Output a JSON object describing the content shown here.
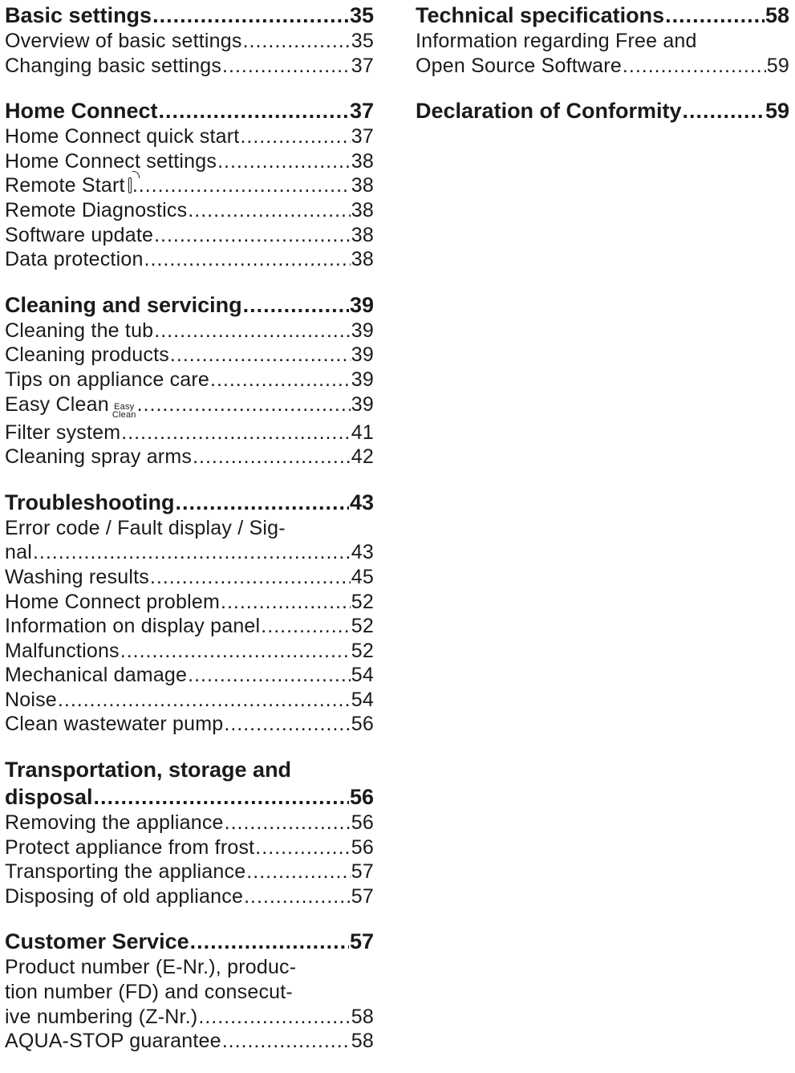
{
  "left": [
    {
      "heading": {
        "label": "Basic settings",
        "page": "35"
      },
      "entries": [
        {
          "label": "Overview of basic settings",
          "page": "35"
        },
        {
          "label": "Changing basic settings",
          "page": "37"
        }
      ]
    },
    {
      "heading": {
        "label": "Home Connect ",
        "page": "37"
      },
      "entries": [
        {
          "label": "Home Connect quick start ",
          "page": "37"
        },
        {
          "label": "Home Connect settings",
          "page": "38"
        },
        {
          "label": "Remote Start ",
          "page": "38",
          "icon": "remote-start-icon"
        },
        {
          "label": "Remote Diagnostics ",
          "page": "38"
        },
        {
          "label": "Software update ",
          "page": "38"
        },
        {
          "label": "Data protection",
          "page": "38"
        }
      ]
    },
    {
      "heading": {
        "label": "Cleaning and servicing",
        "page": "39"
      },
      "entries": [
        {
          "label": "Cleaning the tub",
          "page": "39"
        },
        {
          "label": "Cleaning products",
          "page": "39"
        },
        {
          "label": "Tips on appliance care",
          "page": "39"
        },
        {
          "label": "Easy Clean ",
          "page": "39",
          "icon": "easy-clean-icon",
          "icon_top": "Easy",
          "icon_bottom": "Clean"
        },
        {
          "label": "Filter system ",
          "page": "41"
        },
        {
          "label": "Cleaning spray arms ",
          "page": "42"
        }
      ]
    },
    {
      "heading": {
        "label": "Troubleshooting",
        "page": "43"
      },
      "entries": [
        {
          "label": "Error code / Fault display / Sig-",
          "cont": "nal",
          "page": "43"
        },
        {
          "label": "Washing results",
          "page": "45"
        },
        {
          "label": "Home Connect problem",
          "page": "52"
        },
        {
          "label": "Information on display panel",
          "page": "52"
        },
        {
          "label": "Malfunctions ",
          "page": "52"
        },
        {
          "label": "Mechanical damage",
          "page": "54"
        },
        {
          "label": "Noise ",
          "page": "54"
        },
        {
          "label": "Clean wastewater pump",
          "page": "56"
        }
      ]
    },
    {
      "heading": {
        "label": "Transportation, storage and",
        "cont": "disposal ",
        "page": "56"
      },
      "entries": [
        {
          "label": "Removing the appliance ",
          "page": "56"
        },
        {
          "label": "Protect appliance from frost",
          "page": "56"
        },
        {
          "label": "Transporting the appliance ",
          "page": "57"
        },
        {
          "label": "Disposing of old appliance ",
          "page": "57"
        }
      ]
    },
    {
      "heading": {
        "label": "Customer Service",
        "page": "57"
      },
      "entries": [
        {
          "label": "Product number (E-Nr.), produc-",
          "label2": "tion number (FD) and consecut-",
          "cont": "ive numbering (Z-Nr.) ",
          "page": "58"
        },
        {
          "label": "AQUA-STOP guarantee",
          "page": "58"
        }
      ]
    }
  ],
  "right": [
    {
      "heading": {
        "label": "Technical specifications",
        "page": "58"
      },
      "entries": [
        {
          "label": "Information regarding Free and",
          "cont": "Open Source Software",
          "page": "59"
        }
      ]
    },
    {
      "heading": {
        "label": "Declaration of Conformity ",
        "page": "59"
      },
      "entries": []
    }
  ]
}
